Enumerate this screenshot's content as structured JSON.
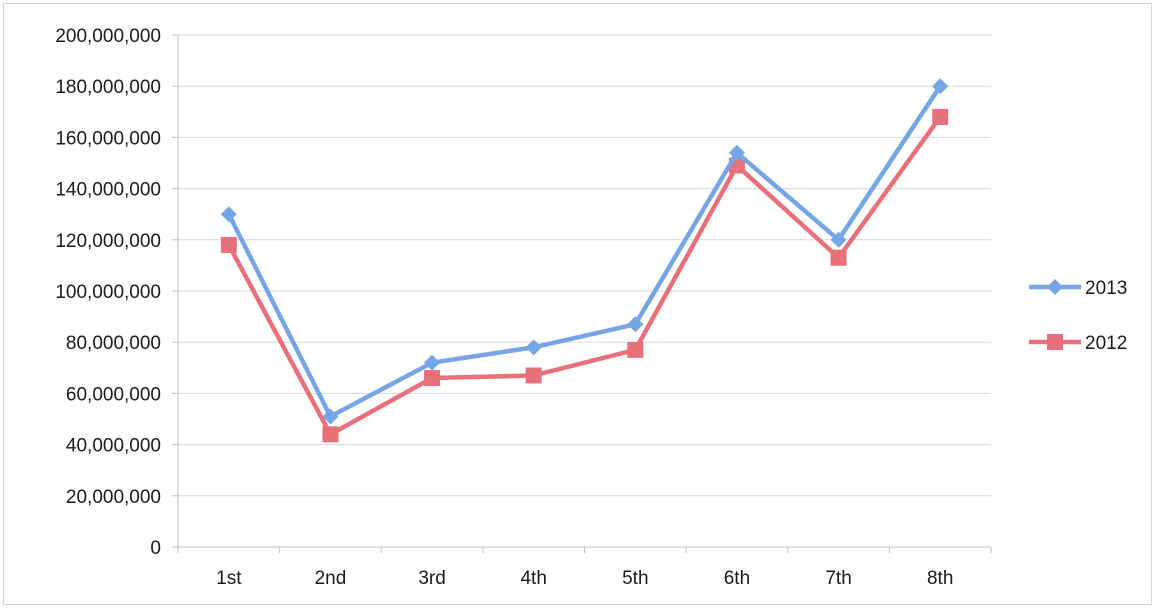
{
  "chart_data": {
    "type": "line",
    "categories": [
      "1st",
      "2nd",
      "3rd",
      "4th",
      "5th",
      "6th",
      "7th",
      "8th"
    ],
    "series": [
      {
        "name": "2013",
        "color": "#76a5e6",
        "marker": "diamond",
        "values": [
          130000000,
          51000000,
          72000000,
          78000000,
          87000000,
          154000000,
          120000000,
          180000000
        ]
      },
      {
        "name": "2012",
        "color": "#e8707a",
        "marker": "square",
        "values": [
          118000000,
          44000000,
          66000000,
          67000000,
          77000000,
          149000000,
          113000000,
          168000000
        ]
      }
    ],
    "y_ticks": [
      "0",
      "20,000,000",
      "40,000,000",
      "60,000,000",
      "80,000,000",
      "100,000,000",
      "120,000,000",
      "140,000,000",
      "160,000,000",
      "180,000,000",
      "200,000,000"
    ],
    "ylim": [
      0,
      200000000
    ],
    "y_step": 20000000,
    "title": "",
    "xlabel": "",
    "ylabel": "",
    "grid": true,
    "legend_position": "right",
    "gridline_color": "#d9d9d9",
    "axis_color": "#bfbfbf"
  }
}
